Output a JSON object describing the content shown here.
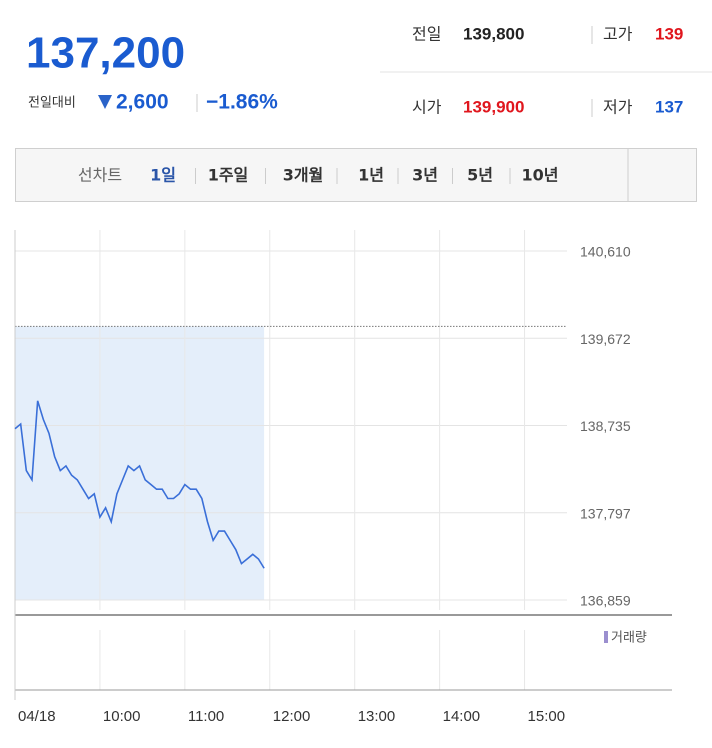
{
  "header": {
    "price": "137,200",
    "change_label": "전일대비",
    "change": "2,600",
    "change_pct": "−1.86%",
    "prev_label": "전일",
    "prev": "139,800",
    "high_label": "고가",
    "high": "139",
    "open_label": "시가",
    "open": "139,900",
    "low_label": "저가",
    "low": "137"
  },
  "tabs": [
    "선차트",
    "1일",
    "1주일",
    "3개월",
    "1년",
    "3년",
    "5년",
    "10년"
  ],
  "chart_data": {
    "type": "line",
    "color": "#3a6fd8",
    "fill": "#e4eefa",
    "x": [
      "09:00",
      "09:04",
      "09:08",
      "09:12",
      "09:16",
      "09:20",
      "09:24",
      "09:28",
      "09:32",
      "09:36",
      "09:40",
      "09:44",
      "09:48",
      "09:52",
      "09:56",
      "10:00",
      "10:04",
      "10:08",
      "10:12",
      "10:16",
      "10:20",
      "10:24",
      "10:28",
      "10:32",
      "10:36",
      "10:40",
      "10:44",
      "10:48",
      "10:52",
      "10:56",
      "11:00",
      "11:04",
      "11:08",
      "11:12",
      "11:16",
      "11:20",
      "11:24",
      "11:28",
      "11:32",
      "11:36",
      "11:40",
      "11:44",
      "11:48",
      "11:52",
      "11:56"
    ],
    "values": [
      138700,
      138750,
      138250,
      138150,
      139000,
      138800,
      138650,
      138400,
      138250,
      138300,
      138200,
      138150,
      138050,
      137950,
      138000,
      137750,
      137850,
      137700,
      138000,
      138150,
      138300,
      138250,
      138300,
      138150,
      138100,
      138050,
      138050,
      137950,
      137950,
      138000,
      138100,
      138050,
      138050,
      137950,
      137700,
      137500,
      137600,
      137600,
      137500,
      137400,
      137250,
      137300,
      137350,
      137300,
      137200
    ],
    "reference_line": 139800,
    "ylim": [
      136859,
      140610
    ],
    "yticks": [
      {
        "value": 140610,
        "label": "140,610"
      },
      {
        "value": 139672,
        "label": "139,672"
      },
      {
        "value": 138735,
        "label": "138,735"
      },
      {
        "value": 137797,
        "label": "137,797"
      },
      {
        "value": 136859,
        "label": "136,859"
      }
    ],
    "xlim": [
      "09:00",
      "15:30"
    ],
    "xticks": [
      {
        "value": "09:00",
        "label": "04/18"
      },
      "10:00",
      "11:00",
      "12:00",
      "13:00",
      "14:00",
      "15:00"
    ],
    "volume_label": "거래량",
    "grid": true
  }
}
